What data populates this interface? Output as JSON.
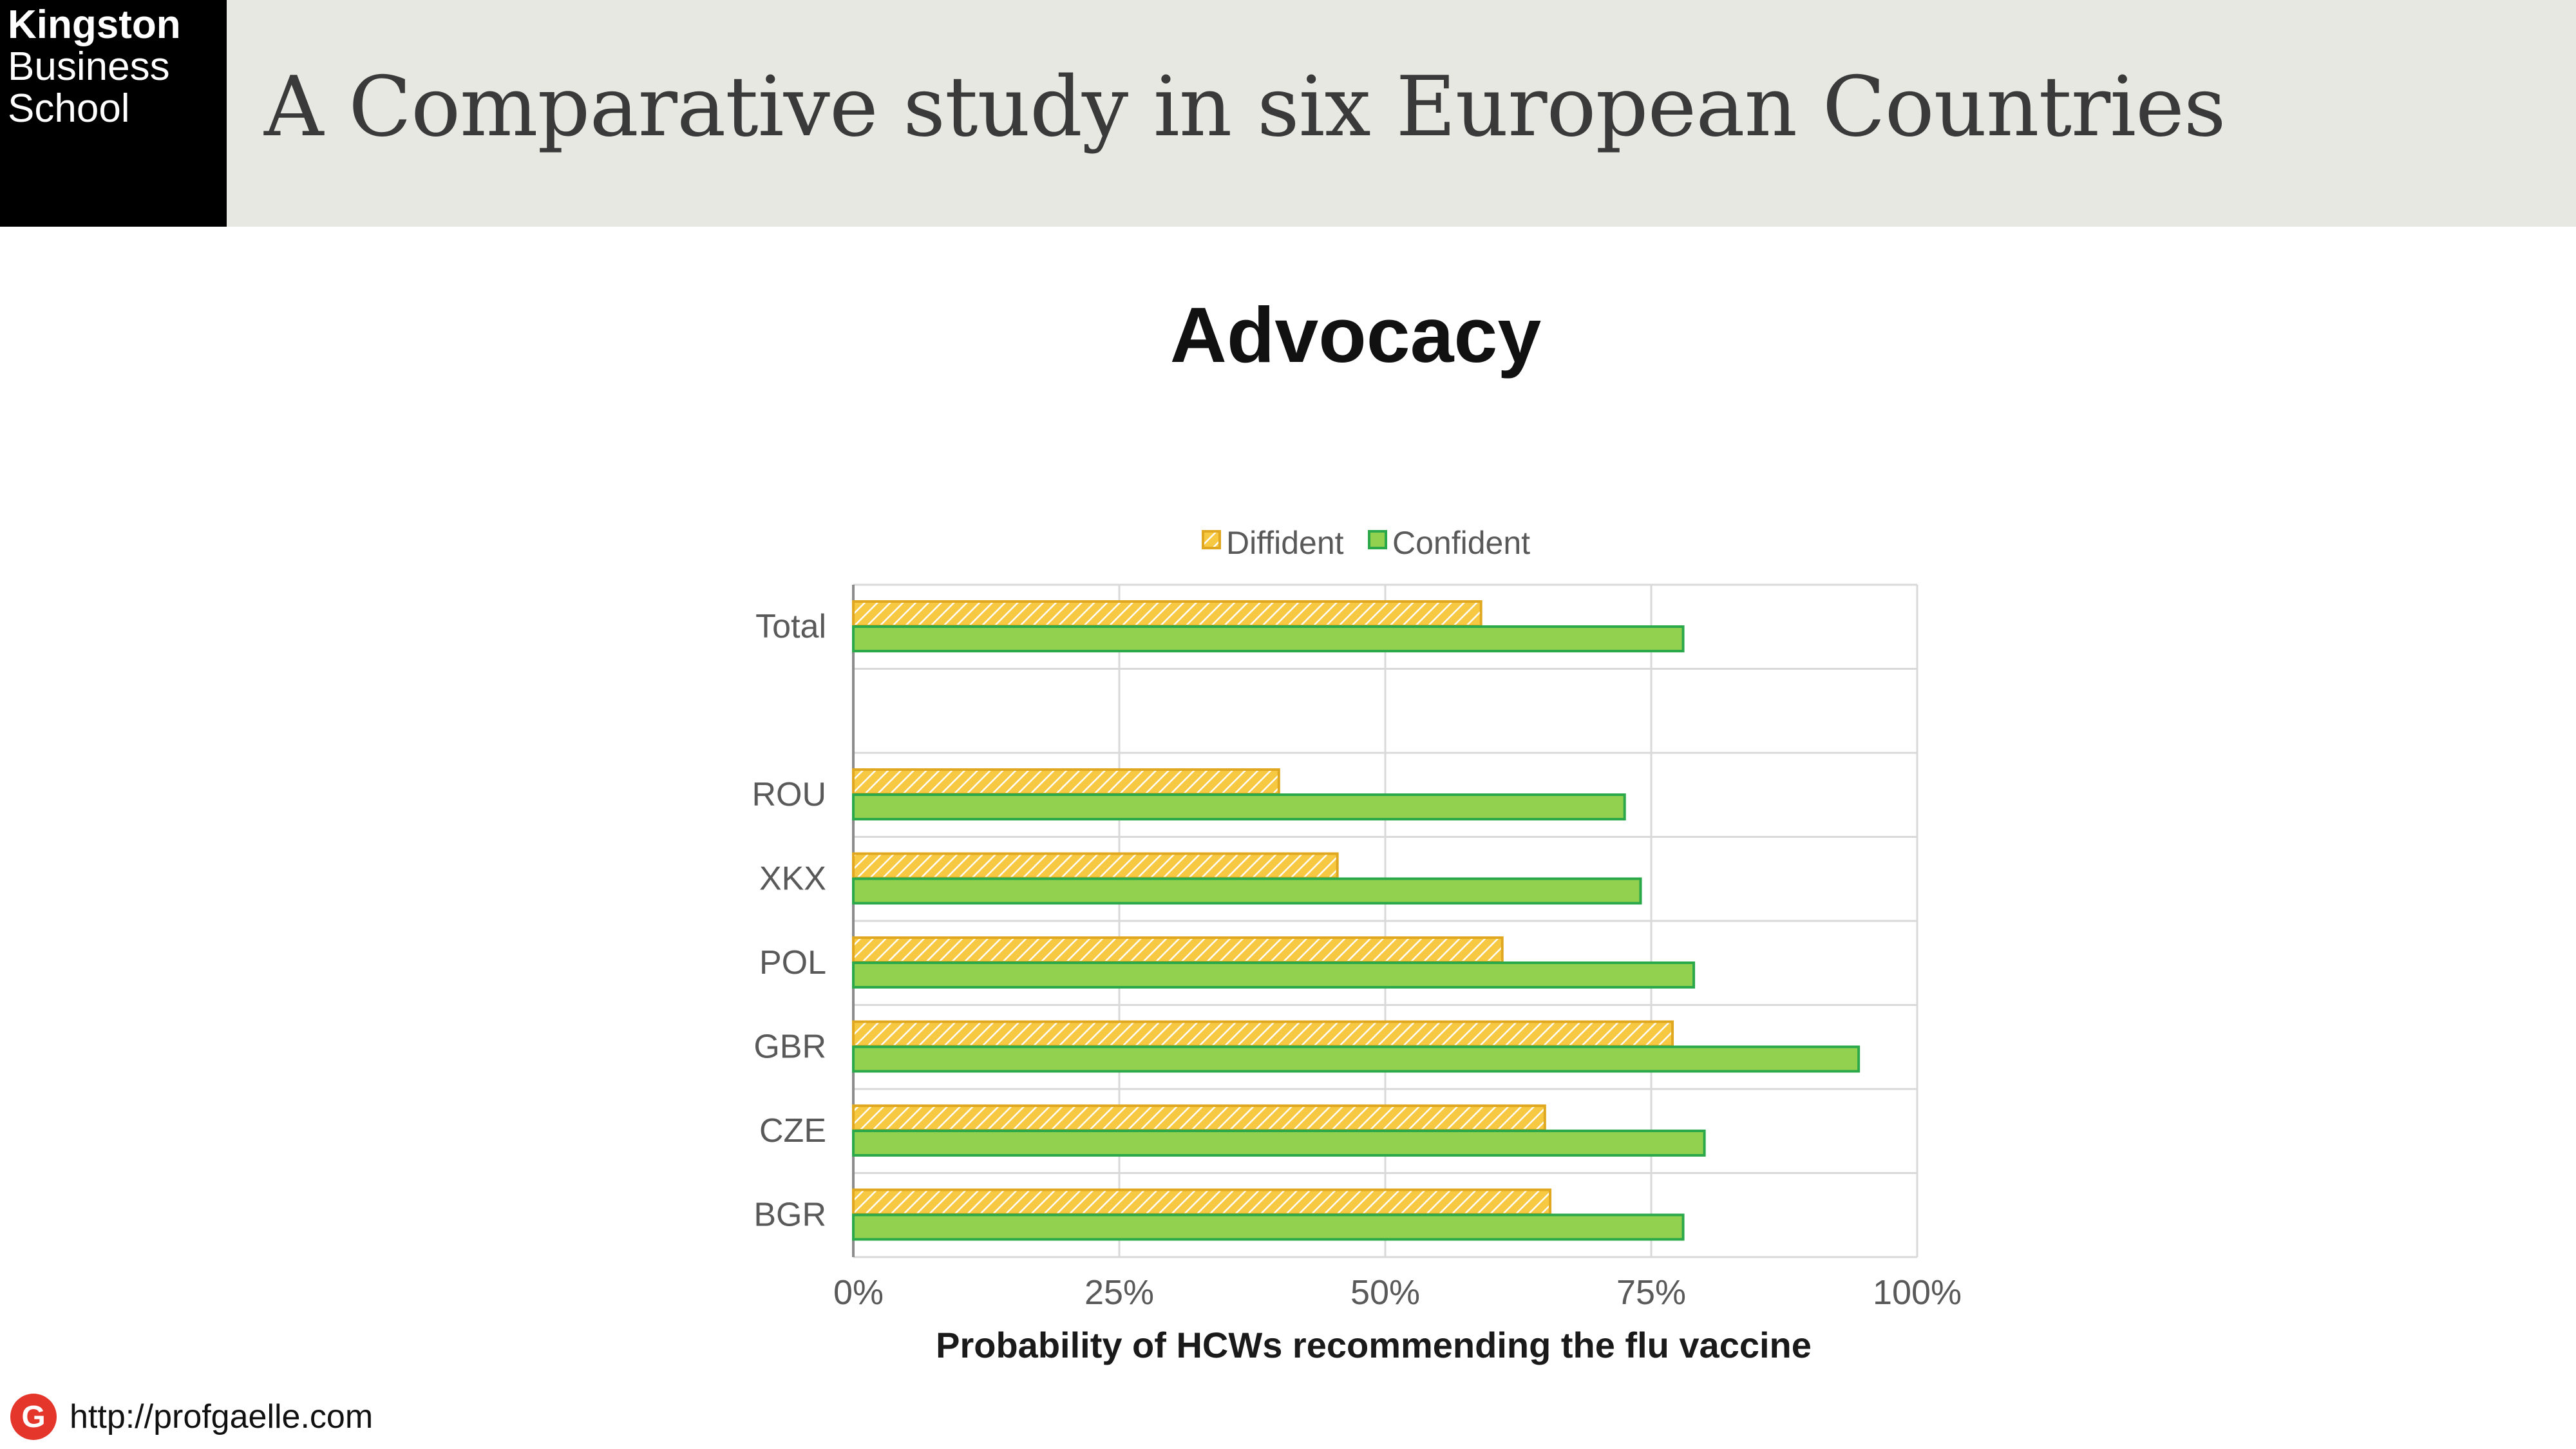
{
  "header": {
    "logo_line1": "Kingston",
    "logo_line2": "Business",
    "logo_line3": "School",
    "title": "A Comparative study in six European Countries"
  },
  "slide": {
    "heading": "Advocacy"
  },
  "footer": {
    "logo_letter": "G",
    "url": "http://profgaelle.com"
  },
  "colors": {
    "header_bg": "#e8e8e3",
    "diffident_fill": "#f7c842",
    "diffident_stroke": "#e0a820",
    "confident_fill": "#92d050",
    "confident_stroke": "#2aa84a",
    "grid": "#d9d9d9",
    "tick_text": "#595959"
  },
  "chart_data": {
    "type": "bar",
    "orientation": "horizontal",
    "categories": [
      "Total",
      "",
      "ROU",
      "XKX",
      "POL",
      "GBR",
      "CZE",
      "BGR"
    ],
    "series": [
      {
        "name": "Diffident",
        "values": [
          0.59,
          null,
          0.4,
          0.455,
          0.61,
          0.77,
          0.65,
          0.655
        ]
      },
      {
        "name": "Confident",
        "values": [
          0.78,
          null,
          0.725,
          0.74,
          0.79,
          0.945,
          0.8,
          0.78
        ]
      }
    ],
    "xlabel": "Probability  of HCWs recommending the flu vaccine",
    "ylabel": "",
    "xlim": [
      0,
      1
    ],
    "xticks": [
      "0%",
      "25%",
      "50%",
      "75%",
      "100%"
    ],
    "grid": true,
    "legend_position": "top-center"
  }
}
